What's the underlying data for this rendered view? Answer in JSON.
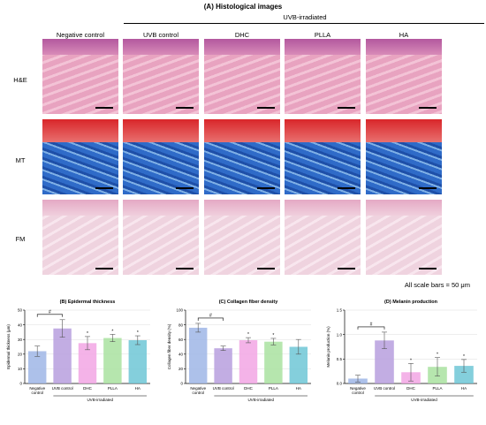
{
  "figure": {
    "title": "(A) Histological images",
    "group_label": "UVB-irradiated",
    "columns": [
      "Negative control",
      "UVB control",
      "DHC",
      "PLLA",
      "HA"
    ],
    "rows": [
      "H&E",
      "MT",
      "FM"
    ],
    "scale_note": "All scale bars = 50 μm",
    "colors": {
      "he_pink": "#e8a3c0",
      "he_epidermis": "#b3589e",
      "mt_red": "#d9262a",
      "mt_blue": "#2f6bc8",
      "fm_pale": "#efd3df"
    }
  },
  "chart_data": [
    {
      "type": "bar",
      "title": "(B) Epidermal thickness",
      "ylabel": "Epidermal thickness (μm)",
      "ylim": [
        0,
        50
      ],
      "yticks": [
        0,
        10,
        20,
        30,
        40,
        50
      ],
      "categories": [
        "Negative control",
        "UVB control",
        "DHC",
        "PLLA",
        "HA"
      ],
      "values": [
        22,
        37.5,
        27.5,
        31,
        29.5
      ],
      "errors": [
        3.5,
        6,
        4.5,
        2.5,
        3
      ],
      "markers": [
        "",
        "",
        "*",
        "*",
        "*"
      ],
      "bracket": {
        "from": "Negative control",
        "to": "UVB control",
        "symbol": "#"
      },
      "group_label": "UVB-irradiated",
      "colors": [
        "#9fb6e6",
        "#b79fde",
        "#f2a6e4",
        "#a9e2a0",
        "#6ec7d6"
      ]
    },
    {
      "type": "bar",
      "title": "(C) Collagen fiber density",
      "ylabel": "Collagen fiber density (%)",
      "ylim": [
        0,
        100
      ],
      "yticks": [
        0,
        20,
        40,
        60,
        80,
        100
      ],
      "categories": [
        "Negative control",
        "UVB control",
        "DHC",
        "PLLA",
        "HA"
      ],
      "values": [
        76,
        48,
        59,
        57,
        50
      ],
      "errors": [
        6,
        3,
        3.5,
        4.5,
        10
      ],
      "markers": [
        "",
        "",
        "*",
        "*",
        ""
      ],
      "bracket": {
        "from": "Negative control",
        "to": "UVB control",
        "symbol": "#"
      },
      "group_label": "UVB-irradiated",
      "colors": [
        "#9fb6e6",
        "#b79fde",
        "#f2a6e4",
        "#a9e2a0",
        "#6ec7d6"
      ]
    },
    {
      "type": "bar",
      "title": "(D) Melanin production",
      "ylabel": "Melanin production (%)",
      "ylim": [
        0,
        1.5
      ],
      "yticks": [
        0.0,
        0.5,
        1.0,
        1.5
      ],
      "categories": [
        "Negative control",
        "UVB control",
        "DHC",
        "PLLA",
        "HA"
      ],
      "values": [
        0.1,
        0.88,
        0.23,
        0.34,
        0.36
      ],
      "errors": [
        0.07,
        0.17,
        0.18,
        0.19,
        0.13
      ],
      "markers": [
        "",
        "",
        "*",
        "*",
        "*"
      ],
      "bracket": {
        "from": "Negative control",
        "to": "UVB control",
        "symbol": "#"
      },
      "group_label": "UVB-irradiated",
      "colors": [
        "#9fb6e6",
        "#b79fde",
        "#f2a6e4",
        "#a9e2a0",
        "#6ec7d6"
      ]
    }
  ]
}
